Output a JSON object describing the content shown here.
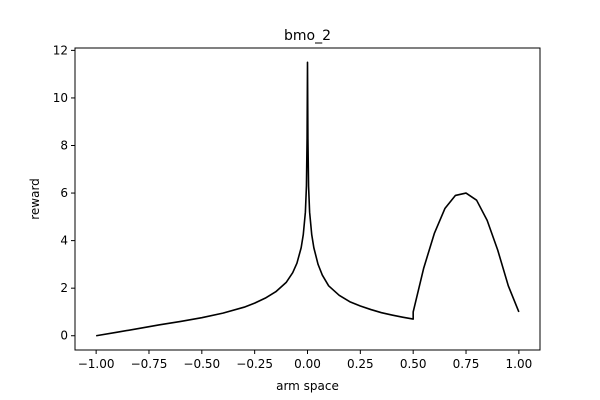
{
  "chart_data": {
    "type": "line",
    "title": "bmo_2",
    "xlabel": "arm space",
    "ylabel": "reward",
    "xlim": [
      -1.1,
      1.1
    ],
    "ylim": [
      -0.6,
      12.1
    ],
    "xticks": [
      -1.0,
      -0.75,
      -0.5,
      -0.25,
      0.0,
      0.25,
      0.5,
      0.75,
      1.0
    ],
    "xtick_labels": [
      "−1.00",
      "−0.75",
      "−0.50",
      "−0.25",
      "0.00",
      "0.25",
      "0.50",
      "0.75",
      "1.00"
    ],
    "yticks": [
      0,
      2,
      4,
      6,
      8,
      10,
      12
    ],
    "ytick_labels": [
      "0",
      "2",
      "4",
      "6",
      "8",
      "10",
      "12"
    ],
    "grid": false,
    "legend": "none",
    "line_color": "#000000",
    "series": [
      {
        "x": [
          -1.0,
          -0.9,
          -0.8,
          -0.7,
          -0.6,
          -0.5,
          -0.4,
          -0.3,
          -0.25,
          -0.2,
          -0.15,
          -0.1,
          -0.07,
          -0.05,
          -0.03,
          -0.02,
          -0.01,
          -0.005,
          -0.002,
          0.0,
          0.002,
          0.005,
          0.01,
          0.02,
          0.03,
          0.05,
          0.07,
          0.1,
          0.15,
          0.2,
          0.25,
          0.3,
          0.35,
          0.4,
          0.45,
          0.5,
          0.5,
          0.55,
          0.6,
          0.65,
          0.7,
          0.75,
          0.8,
          0.85,
          0.9,
          0.95,
          1.0
        ],
        "y": [
          0.0,
          0.15,
          0.3,
          0.46,
          0.6,
          0.76,
          0.95,
          1.2,
          1.37,
          1.58,
          1.85,
          2.25,
          2.65,
          3.05,
          3.7,
          4.25,
          5.2,
          6.3,
          8.3,
          11.5,
          8.3,
          6.3,
          5.2,
          4.25,
          3.7,
          3.0,
          2.55,
          2.1,
          1.7,
          1.43,
          1.25,
          1.1,
          0.97,
          0.87,
          0.78,
          0.7,
          1.0,
          2.85,
          4.3,
          5.35,
          5.9,
          6.0,
          5.7,
          4.85,
          3.6,
          2.1,
          1.0
        ]
      }
    ]
  }
}
